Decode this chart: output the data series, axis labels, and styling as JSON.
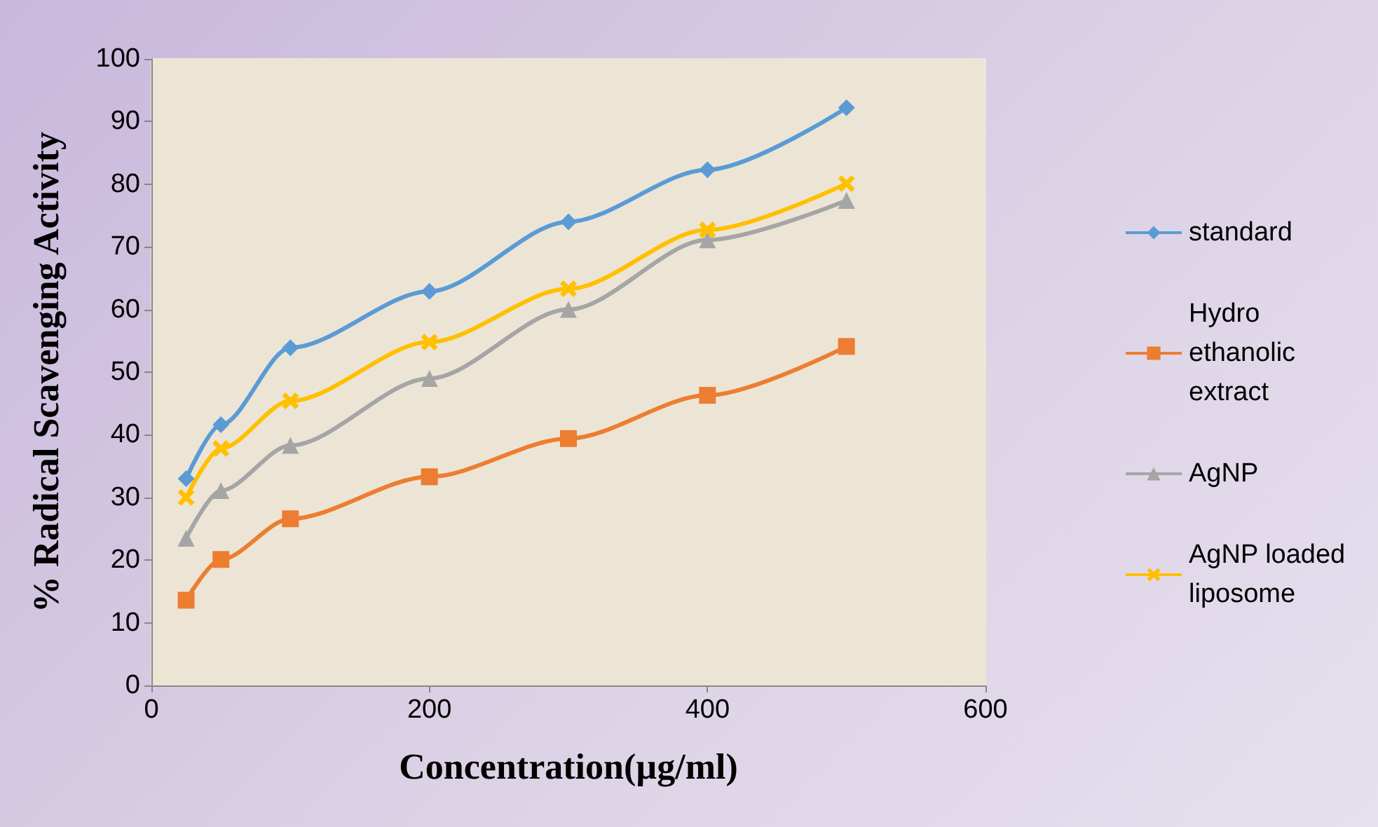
{
  "chart_data": {
    "type": "line",
    "xlabel": "Concentration(µg/ml)",
    "ylabel": "% Radical Scavenging Activity",
    "x": [
      25,
      50,
      100,
      200,
      300,
      400,
      500
    ],
    "series": [
      {
        "name": "standard",
        "color": "#5b9bd5",
        "marker": "diamond",
        "values": [
          33,
          41.6,
          53.9,
          62.9,
          74,
          82.3,
          92.2
        ]
      },
      {
        "name": "Hydro ethanolic extract",
        "color": "#ed7d31",
        "marker": "square",
        "values": [
          13.6,
          20.1,
          26.6,
          33.3,
          39.4,
          46.3,
          54.1
        ]
      },
      {
        "name": "AgNP",
        "color": "#a5a5a5",
        "marker": "triangle",
        "values": [
          23.5,
          31.1,
          38.3,
          49,
          60,
          71.1,
          77.4
        ]
      },
      {
        "name": "AgNP loaded liposome",
        "color": "#ffc000",
        "marker": "cross",
        "values": [
          30,
          37.8,
          45.4,
          54.8,
          63.3,
          72.7,
          80.1
        ]
      }
    ],
    "xlim": [
      0,
      600
    ],
    "xticks": [
      0,
      200,
      400,
      600
    ],
    "ylim": [
      0,
      100
    ],
    "yticks": [
      0,
      10,
      20,
      30,
      40,
      50,
      60,
      70,
      80,
      90,
      100
    ],
    "grid": false,
    "legend": "right"
  }
}
